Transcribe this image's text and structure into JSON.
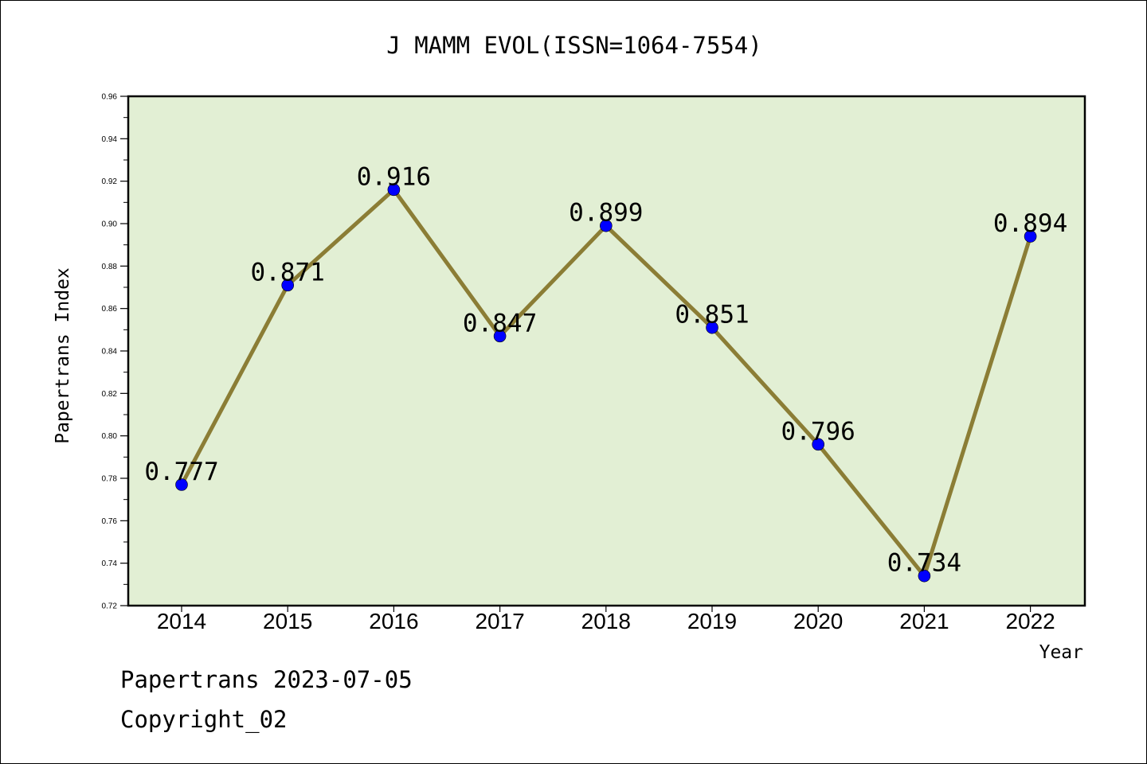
{
  "chart_data": {
    "type": "line",
    "title": "J MAMM EVOL(ISSN=1064-7554)",
    "xlabel": "Year",
    "ylabel": "Papertrans Index",
    "categories": [
      "2014",
      "2015",
      "2016",
      "2017",
      "2018",
      "2019",
      "2020",
      "2021",
      "2022"
    ],
    "values": [
      0.777,
      0.871,
      0.916,
      0.847,
      0.899,
      0.851,
      0.796,
      0.734,
      0.894
    ],
    "value_labels": [
      "0.777",
      "0.871",
      "0.916",
      "0.847",
      "0.899",
      "0.851",
      "0.796",
      "0.734",
      "0.894"
    ],
    "ylim": [
      0.72,
      0.96
    ],
    "yticks": [
      "0.72",
      "0.74",
      "0.76",
      "0.78",
      "0.80",
      "0.82",
      "0.84",
      "0.86",
      "0.88",
      "0.90",
      "0.92",
      "0.94",
      "0.96"
    ],
    "grid": false,
    "colors": {
      "plot_background": "#e2efd4",
      "line": "#8b7d35",
      "marker": "#0000ff"
    }
  },
  "footer": {
    "line1": "Papertrans 2023-07-05",
    "line2": "Copyright_02"
  }
}
